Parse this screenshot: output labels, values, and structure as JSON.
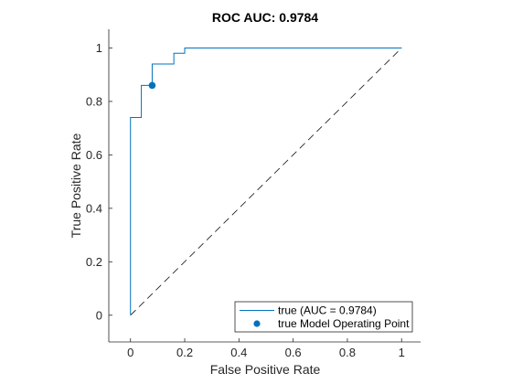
{
  "chart_data": {
    "type": "line",
    "title": "ROC AUC: 0.9784",
    "xlabel": "False Positive Rate",
    "ylabel": "True Positive Rate",
    "xlim": [
      -0.08,
      1.07
    ],
    "ylim": [
      -0.1,
      1.07
    ],
    "xticks": [
      0,
      0.2,
      0.4,
      0.6,
      0.8,
      1
    ],
    "yticks": [
      0,
      0.2,
      0.4,
      0.6,
      0.8,
      1
    ],
    "xtick_labels": [
      "0",
      "0.2",
      "0.4",
      "0.6",
      "0.8",
      "1"
    ],
    "ytick_labels": [
      "0",
      "0.2",
      "0.4",
      "0.6",
      "0.8",
      "1"
    ],
    "grid": false,
    "legend_position": "bottom-right",
    "series": [
      {
        "name": "true (AUC = 0.9784)",
        "color": "#0072BD",
        "style": "solid",
        "x": [
          0,
          0,
          0,
          0.04,
          0.04,
          0.08,
          0.08,
          0.16,
          0.16,
          0.2,
          0.2,
          1
        ],
        "y": [
          0,
          0.74,
          0.74,
          0.74,
          0.86,
          0.86,
          0.94,
          0.94,
          0.98,
          0.98,
          1,
          1
        ]
      },
      {
        "name": "true Model Operating Point",
        "color": "#0072BD",
        "style": "marker",
        "x": [
          0.08
        ],
        "y": [
          0.86
        ]
      }
    ],
    "reference_line": {
      "style": "dashed",
      "color": "#000000",
      "x": [
        0,
        1
      ],
      "y": [
        0,
        1
      ]
    }
  }
}
